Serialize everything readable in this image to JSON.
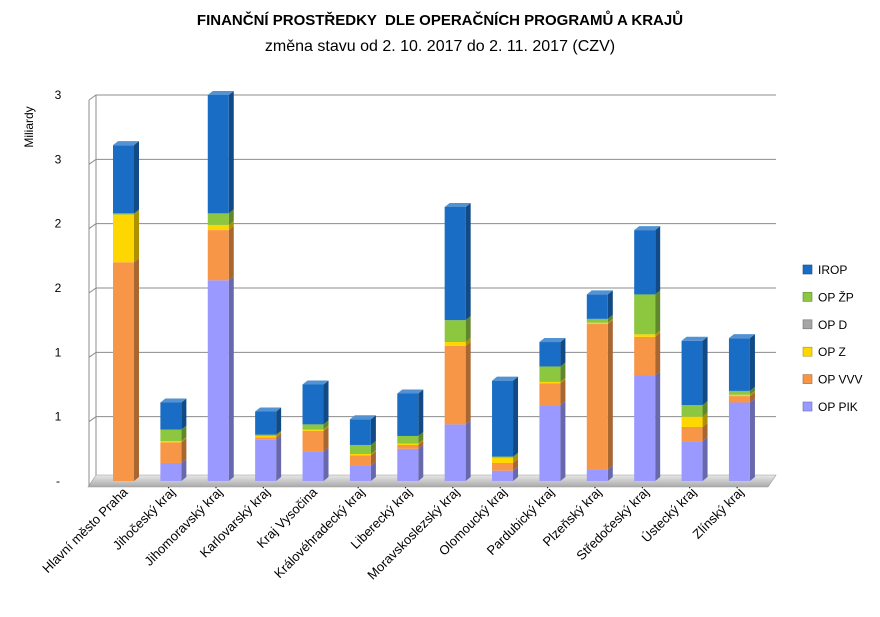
{
  "chart_data": {
    "type": "bar",
    "stacked": true,
    "style": "3d",
    "title": "FINANČNÍ PROSTŘEDKY  DLE OPERAČNÍCH PROGRAMŮ A KRAJŮ",
    "subtitle": "změna stavu od 2. 10. 2017 do 2. 11. 2017 (CZV)",
    "ylabel": "Miliardy",
    "ylim": [
      0,
      3
    ],
    "y_ticks": [
      0,
      0.5,
      1,
      1.5,
      2,
      2.5,
      3
    ],
    "y_tick_labels": [
      "-",
      "1",
      "1",
      "2",
      "2",
      "3",
      "3"
    ],
    "grid": true,
    "legend_position": "right",
    "categories": [
      "Hlavní město Praha",
      "Jihočeský kraj",
      "Jihomoravský kraj",
      "Karlovarský kraj",
      "Kraj Vysočina",
      "Královéhradecký kraj",
      "Liberecký kraj",
      "Moravskoslezský kraj",
      "Olomoucký kraj",
      "Pardubický kraj",
      "Plzeňský kraj",
      "Středočeský kraj",
      "Ústecký kraj",
      "Zlínský kraj"
    ],
    "series": [
      {
        "name": "OP PIK",
        "color": "#9999FF",
        "values": [
          0,
          0.14,
          1.56,
          0.32,
          0.23,
          0.12,
          0.25,
          0.44,
          0.08,
          0.59,
          0.09,
          0.82,
          0.31,
          0.61
        ]
      },
      {
        "name": "OP VVV",
        "color": "#F79646",
        "values": [
          1.7,
          0.16,
          0.39,
          0.02,
          0.16,
          0.08,
          0.03,
          0.61,
          0.06,
          0.17,
          1.13,
          0.3,
          0.11,
          0.05
        ]
      },
      {
        "name": "OP Z",
        "color": "#FFD700",
        "values": [
          0.37,
          0.01,
          0.04,
          0.01,
          0.01,
          0.01,
          0.01,
          0.03,
          0.04,
          0.01,
          0.01,
          0.02,
          0.08,
          0.01
        ]
      },
      {
        "name": "OP D",
        "color": "#A6A6A6",
        "values": [
          0,
          0,
          0,
          0,
          0,
          0,
          0,
          0,
          0,
          0,
          0,
          0,
          0,
          0
        ]
      },
      {
        "name": "OP ŽP",
        "color": "#8DC63F",
        "values": [
          0.01,
          0.09,
          0.09,
          0.01,
          0.04,
          0.07,
          0.06,
          0.17,
          0.01,
          0.12,
          0.03,
          0.31,
          0.09,
          0.03
        ]
      },
      {
        "name": "IROP",
        "color": "#1A6DC4",
        "values": [
          0.53,
          0.21,
          0.92,
          0.18,
          0.31,
          0.2,
          0.33,
          0.88,
          0.59,
          0.19,
          0.19,
          0.5,
          0.5,
          0.41
        ]
      }
    ]
  }
}
